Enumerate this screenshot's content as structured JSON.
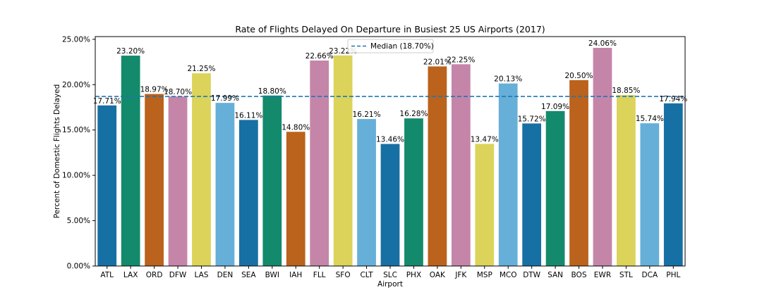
{
  "chart_data": {
    "type": "bar",
    "title": "Rate of Flights Delayed On Departure in Busiest 25 US Airports (2017)",
    "xlabel": "Airport",
    "ylabel": "Percent of Domestic Flights Delayed",
    "ylim": [
      0,
      25.3
    ],
    "yticks": [
      "0.00%",
      "5.00%",
      "10.00%",
      "15.00%",
      "20.00%",
      "25.00%"
    ],
    "categories": [
      "ATL",
      "LAX",
      "ORD",
      "DFW",
      "LAS",
      "DEN",
      "SEA",
      "BWI",
      "IAH",
      "FLL",
      "SFO",
      "CLT",
      "SLC",
      "PHX",
      "OAK",
      "JFK",
      "MSP",
      "MCO",
      "DTW",
      "SAN",
      "BOS",
      "EWR",
      "STL",
      "DCA",
      "PHL"
    ],
    "values": [
      17.71,
      23.2,
      18.97,
      18.7,
      21.25,
      17.99,
      16.11,
      18.8,
      14.8,
      22.66,
      23.22,
      16.21,
      13.46,
      16.28,
      22.01,
      22.25,
      13.47,
      20.13,
      15.72,
      17.09,
      20.5,
      24.06,
      18.85,
      15.74,
      17.94
    ],
    "value_labels": [
      "17.71%",
      "23.20%",
      "18.97%",
      "18.70%",
      "21.25%",
      "17.99%",
      "16.11%",
      "18.80%",
      "14.80%",
      "22.66%",
      "23.22%",
      "16.21%",
      "13.46%",
      "16.28%",
      "22.01%",
      "22.25%",
      "13.47%",
      "20.13%",
      "15.72%",
      "17.09%",
      "20.50%",
      "24.06%",
      "18.85%",
      "15.74%",
      "17.94%"
    ],
    "palette": [
      "#1770a3",
      "#138a6b",
      "#bb621c",
      "#c585a9",
      "#dcd35a",
      "#66afd9"
    ],
    "median": {
      "value": 18.7,
      "label": "Median (18.70%)",
      "color": "#1f77b4"
    },
    "legend_position": "top-center",
    "grid": false
  }
}
